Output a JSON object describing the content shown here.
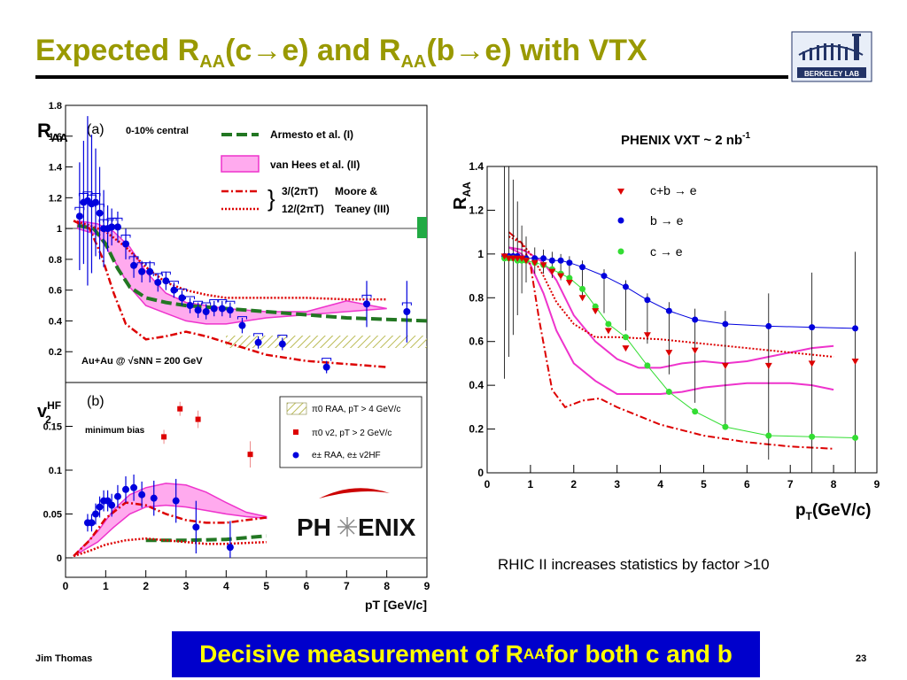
{
  "slide": {
    "title_parts": [
      "Expected R",
      "AA",
      "(c",
      "→",
      "e) and R",
      "AA",
      "(b",
      "→",
      "e) with VTX"
    ],
    "logo_text": "BERKELEY LAB",
    "author": "Jim Thomas",
    "page_number": "23",
    "banner_parts": [
      "Decisive measurement of R",
      "AA",
      " for both c and b"
    ],
    "note": "RHIC II increases statistics by factor >10"
  },
  "colors": {
    "title": "#999900",
    "banner_bg": "#0000cc",
    "banner_text": "#ffff00",
    "blue_points": "#0000dd",
    "red_points": "#dd0000",
    "green_points": "#33dd33",
    "magenta_band": "#ee33cc",
    "armesto": "#227722",
    "moore": "#dd0000",
    "hatch": "#cccc66"
  },
  "chart_data": [
    {
      "id": "panel-a",
      "type": "scatter",
      "panel_label": "(a)",
      "subtitle": "0-10% central",
      "collision_label": "Au+Au @ √sNN = 200 GeV",
      "ylabel": "RAA",
      "ylim": [
        0,
        1.8
      ],
      "xlim": [
        0,
        9
      ],
      "yticks": [
        "0.2",
        "0.4",
        "0.6",
        "0.8",
        "1",
        "1.2",
        "1.4",
        "1.6",
        "1.8"
      ],
      "legend": [
        "Armesto et al. (I)",
        "van Hees et al. (II)",
        "3/(2πT)",
        "12/(2πT)",
        "Moore &",
        "Teaney (III)"
      ],
      "points": {
        "x": [
          0.35,
          0.45,
          0.55,
          0.65,
          0.75,
          0.85,
          0.95,
          1.05,
          1.15,
          1.3,
          1.5,
          1.7,
          1.9,
          2.1,
          2.3,
          2.5,
          2.7,
          2.9,
          3.1,
          3.3,
          3.5,
          3.7,
          3.9,
          4.1,
          4.4,
          4.8,
          5.4,
          6.5,
          7.5,
          8.5
        ],
        "y": [
          1.08,
          1.17,
          1.18,
          1.16,
          1.17,
          1.1,
          1.0,
          1.0,
          1.01,
          1.01,
          0.9,
          0.76,
          0.72,
          0.72,
          0.65,
          0.66,
          0.6,
          0.55,
          0.5,
          0.47,
          0.46,
          0.48,
          0.48,
          0.47,
          0.37,
          0.26,
          0.25,
          0.1,
          0.51,
          0.46
        ],
        "err": [
          0.35,
          0.4,
          0.55,
          0.45,
          0.35,
          0.3,
          0.25,
          0.15,
          0.12,
          0.1,
          0.1,
          0.08,
          0.07,
          0.07,
          0.06,
          0.06,
          0.05,
          0.05,
          0.05,
          0.05,
          0.05,
          0.05,
          0.05,
          0.05,
          0.05,
          0.04,
          0.04,
          0.04,
          0.15,
          0.2
        ]
      },
      "armesto": {
        "x": [
          0.3,
          0.7,
          1.0,
          1.3,
          1.6,
          2.0,
          2.5,
          3.0,
          4.0,
          5.0,
          6.0,
          7.0,
          8.0,
          9.0
        ],
        "y": [
          1.02,
          1.0,
          0.9,
          0.74,
          0.62,
          0.55,
          0.52,
          0.5,
          0.48,
          0.46,
          0.44,
          0.42,
          0.41,
          0.4
        ]
      },
      "van_hees_low": {
        "x": [
          0.3,
          0.8,
          1.2,
          1.6,
          2.0,
          2.5,
          3.0,
          3.5,
          4.0,
          4.5,
          5.0
        ],
        "y": [
          1.0,
          0.96,
          0.8,
          0.62,
          0.5,
          0.45,
          0.4,
          0.38,
          0.38,
          0.4,
          0.42
        ]
      },
      "van_hees_high": {
        "x": [
          0.3,
          0.8,
          1.2,
          1.6,
          2.0,
          2.5,
          3.0,
          3.5,
          4.0,
          4.5,
          5.0,
          6.0,
          7.0,
          8.0
        ],
        "y": [
          1.05,
          1.03,
          0.98,
          0.88,
          0.72,
          0.58,
          0.52,
          0.5,
          0.48,
          0.47,
          0.46,
          0.46,
          0.53,
          0.48
        ]
      },
      "moore_3": {
        "x": [
          0.2,
          0.6,
          0.9,
          1.2,
          1.5,
          2.0,
          2.5,
          3.0,
          3.5,
          4.0,
          4.5,
          5.0,
          6.0,
          7.0,
          8.0
        ],
        "y": [
          1.05,
          1.0,
          0.82,
          0.58,
          0.38,
          0.28,
          0.3,
          0.33,
          0.3,
          0.26,
          0.22,
          0.18,
          0.14,
          0.12,
          0.1
        ]
      },
      "moore_12": {
        "x": [
          0.2,
          0.6,
          1.0,
          1.5,
          2.0,
          2.5,
          3.0,
          3.5,
          4.0,
          5.0,
          6.0,
          7.0,
          8.0
        ],
        "y": [
          1.05,
          1.02,
          0.98,
          0.88,
          0.75,
          0.65,
          0.6,
          0.57,
          0.55,
          0.55,
          0.55,
          0.54,
          0.54
        ]
      }
    },
    {
      "id": "panel-b",
      "type": "scatter",
      "panel_label": "(b)",
      "subtitle": "minimum bias",
      "ylabel": "v2HF",
      "xlabel": "pT [GeV/c]",
      "ylim": [
        0,
        0.2
      ],
      "xlim": [
        0,
        9
      ],
      "xticks": [
        "0",
        "1",
        "2",
        "3",
        "4",
        "5",
        "6",
        "7",
        "8",
        "9"
      ],
      "yticks": [
        "0",
        "0.05",
        "0.1",
        "0.15"
      ],
      "legend": [
        "π0 RAA, pT > 4 GeV/c",
        "π0 v2, pT > 2 GeV/c",
        "e± RAA, e± v2HF"
      ],
      "blue_points": {
        "x": [
          0.55,
          0.65,
          0.75,
          0.85,
          0.95,
          1.05,
          1.15,
          1.3,
          1.5,
          1.7,
          1.9,
          2.2,
          2.75,
          3.25,
          4.1
        ],
        "y": [
          0.04,
          0.04,
          0.05,
          0.058,
          0.065,
          0.065,
          0.06,
          0.07,
          0.078,
          0.08,
          0.072,
          0.068,
          0.065,
          0.035,
          0.012
        ],
        "err": [
          0.01,
          0.01,
          0.012,
          0.012,
          0.012,
          0.012,
          0.013,
          0.013,
          0.015,
          0.015,
          0.015,
          0.02,
          0.025,
          0.03,
          0.03
        ]
      },
      "red_points": {
        "x": [
          2.45,
          2.85,
          3.3,
          4.6
        ],
        "y": [
          0.138,
          0.17,
          0.158,
          0.118
        ],
        "err": [
          0.008,
          0.008,
          0.01,
          0.015
        ]
      },
      "van_hees_low": {
        "x": [
          0.2,
          0.8,
          1.2,
          1.6,
          2.0,
          2.5,
          3.0,
          3.5,
          4.0,
          4.5,
          5.0
        ],
        "y": [
          0.002,
          0.018,
          0.035,
          0.05,
          0.058,
          0.06,
          0.058,
          0.054,
          0.05,
          0.047,
          0.045
        ]
      },
      "van_hees_high": {
        "x": [
          0.2,
          0.8,
          1.2,
          1.6,
          2.0,
          2.5,
          3.0,
          3.5,
          4.0,
          4.5,
          5.0
        ],
        "y": [
          0.002,
          0.03,
          0.055,
          0.072,
          0.08,
          0.085,
          0.083,
          0.075,
          0.063,
          0.052,
          0.047
        ]
      },
      "moore_3": {
        "x": [
          0.2,
          0.6,
          1.0,
          1.5,
          2.0,
          2.5,
          3.0,
          3.5,
          4.0,
          4.5,
          5.0
        ],
        "y": [
          0.002,
          0.02,
          0.045,
          0.063,
          0.06,
          0.05,
          0.043,
          0.04,
          0.04,
          0.043,
          0.046
        ]
      },
      "moore_12": {
        "x": [
          0.2,
          0.6,
          1.0,
          1.5,
          2.0,
          2.5,
          3.0,
          3.5,
          4.0,
          5.0
        ],
        "y": [
          0.002,
          0.008,
          0.015,
          0.02,
          0.022,
          0.02,
          0.018,
          0.016,
          0.016,
          0.018
        ]
      },
      "armesto": {
        "x": [
          2.0,
          3.0,
          4.0,
          5.0
        ],
        "y": [
          0.02,
          0.02,
          0.021,
          0.025
        ]
      }
    },
    {
      "id": "panel-vxt",
      "type": "scatter",
      "title": "PHENIX VXT  ~ 2 nb",
      "title_sup": "-1",
      "ylabel": "RAA",
      "xlabel": "pT(GeV/c)",
      "xlim": [
        0,
        9
      ],
      "ylim": [
        0,
        1.4
      ],
      "xticks": [
        "0",
        "1",
        "2",
        "3",
        "4",
        "5",
        "6",
        "7",
        "8",
        "9"
      ],
      "yticks": [
        "0",
        "0.2",
        "0.4",
        "0.6",
        "0.8",
        "1",
        "1.2",
        "1.4"
      ],
      "legend": [
        "c+b → e",
        "b → e",
        "c → e"
      ],
      "cb": {
        "x": [
          0.4,
          0.5,
          0.6,
          0.7,
          0.8,
          0.9,
          1.1,
          1.3,
          1.5,
          1.7,
          1.9,
          2.2,
          2.5,
          2.8,
          3.2,
          3.7,
          4.2,
          4.8,
          5.5,
          6.5,
          7.5,
          8.5
        ],
        "y": [
          0.99,
          0.98,
          0.98,
          0.98,
          0.98,
          0.97,
          0.96,
          0.95,
          0.92,
          0.9,
          0.87,
          0.8,
          0.74,
          0.65,
          0.57,
          0.63,
          0.55,
          0.56,
          0.49,
          0.49,
          0.5,
          0.51
        ]
      },
      "b": {
        "x": [
          0.4,
          0.5,
          0.6,
          0.7,
          0.8,
          0.9,
          1.1,
          1.3,
          1.5,
          1.7,
          1.9,
          2.2,
          2.7,
          3.2,
          3.7,
          4.2,
          4.8,
          5.5,
          6.5,
          7.5,
          8.5
        ],
        "y": [
          0.99,
          0.99,
          0.99,
          0.99,
          0.98,
          0.98,
          0.98,
          0.98,
          0.97,
          0.97,
          0.96,
          0.94,
          0.9,
          0.85,
          0.79,
          0.74,
          0.7,
          0.68,
          0.67,
          0.665,
          0.66
        ]
      },
      "c": {
        "x": [
          0.4,
          0.5,
          0.6,
          0.7,
          0.8,
          0.9,
          1.1,
          1.3,
          1.5,
          1.7,
          1.9,
          2.2,
          2.5,
          2.8,
          3.2,
          3.7,
          4.2,
          4.8,
          5.5,
          6.5,
          7.5,
          8.5
        ],
        "y": [
          0.98,
          0.98,
          0.98,
          0.97,
          0.97,
          0.97,
          0.96,
          0.95,
          0.93,
          0.91,
          0.89,
          0.84,
          0.76,
          0.68,
          0.62,
          0.49,
          0.37,
          0.28,
          0.21,
          0.17,
          0.165,
          0.16
        ]
      },
      "err_x": [
        0.4,
        0.5,
        0.6,
        0.7,
        0.8,
        0.9,
        1.1,
        1.3,
        1.5,
        1.7,
        1.9,
        2.2,
        2.7,
        3.2,
        3.7,
        4.2,
        4.8,
        5.5,
        6.5,
        7.5,
        8.5
      ],
      "err": [
        0.55,
        0.45,
        0.35,
        0.25,
        0.15,
        0.1,
        0.05,
        0.04,
        0.04,
        0.03,
        0.03,
        0.03,
        0.03,
        0.03,
        0.03,
        0.04,
        0.05,
        0.06,
        0.15,
        0.25,
        0.35
      ],
      "curve_upper": {
        "x": [
          0.5,
          0.8,
          1.0,
          1.3,
          1.6,
          2.0,
          2.5,
          3.0,
          3.5,
          4.0,
          4.5,
          5.0,
          5.5,
          6.0,
          6.5,
          7.0,
          7.5,
          8.0
        ],
        "y": [
          1.03,
          1.02,
          1.0,
          0.96,
          0.88,
          0.72,
          0.6,
          0.52,
          0.48,
          0.48,
          0.5,
          0.51,
          0.5,
          0.51,
          0.53,
          0.55,
          0.57,
          0.58
        ]
      },
      "curve_lower": {
        "x": [
          0.5,
          0.8,
          1.0,
          1.3,
          1.6,
          2.0,
          2.5,
          3.0,
          3.5,
          4.0,
          4.5,
          5.0,
          5.5,
          6.0,
          6.5,
          7.0,
          7.5,
          8.0
        ],
        "y": [
          1.03,
          1.0,
          0.95,
          0.82,
          0.65,
          0.5,
          0.42,
          0.36,
          0.36,
          0.36,
          0.37,
          0.39,
          0.4,
          0.41,
          0.41,
          0.41,
          0.4,
          0.38
        ]
      },
      "moore_3": {
        "x": [
          0.5,
          0.8,
          1.0,
          1.2,
          1.5,
          1.8,
          2.2,
          2.6,
          3.0,
          3.5,
          4.0,
          5.0,
          6.0,
          7.0,
          8.0
        ],
        "y": [
          1.1,
          1.05,
          0.95,
          0.7,
          0.38,
          0.3,
          0.33,
          0.34,
          0.3,
          0.26,
          0.22,
          0.17,
          0.14,
          0.12,
          0.11
        ]
      },
      "moore_12": {
        "x": [
          0.5,
          0.8,
          1.0,
          1.3,
          1.6,
          2.0,
          2.5,
          3.0,
          4.0,
          5.0,
          6.0,
          7.0,
          8.0
        ],
        "y": [
          1.08,
          1.05,
          1.0,
          0.9,
          0.78,
          0.68,
          0.62,
          0.62,
          0.61,
          0.59,
          0.57,
          0.55,
          0.53
        ]
      }
    }
  ]
}
